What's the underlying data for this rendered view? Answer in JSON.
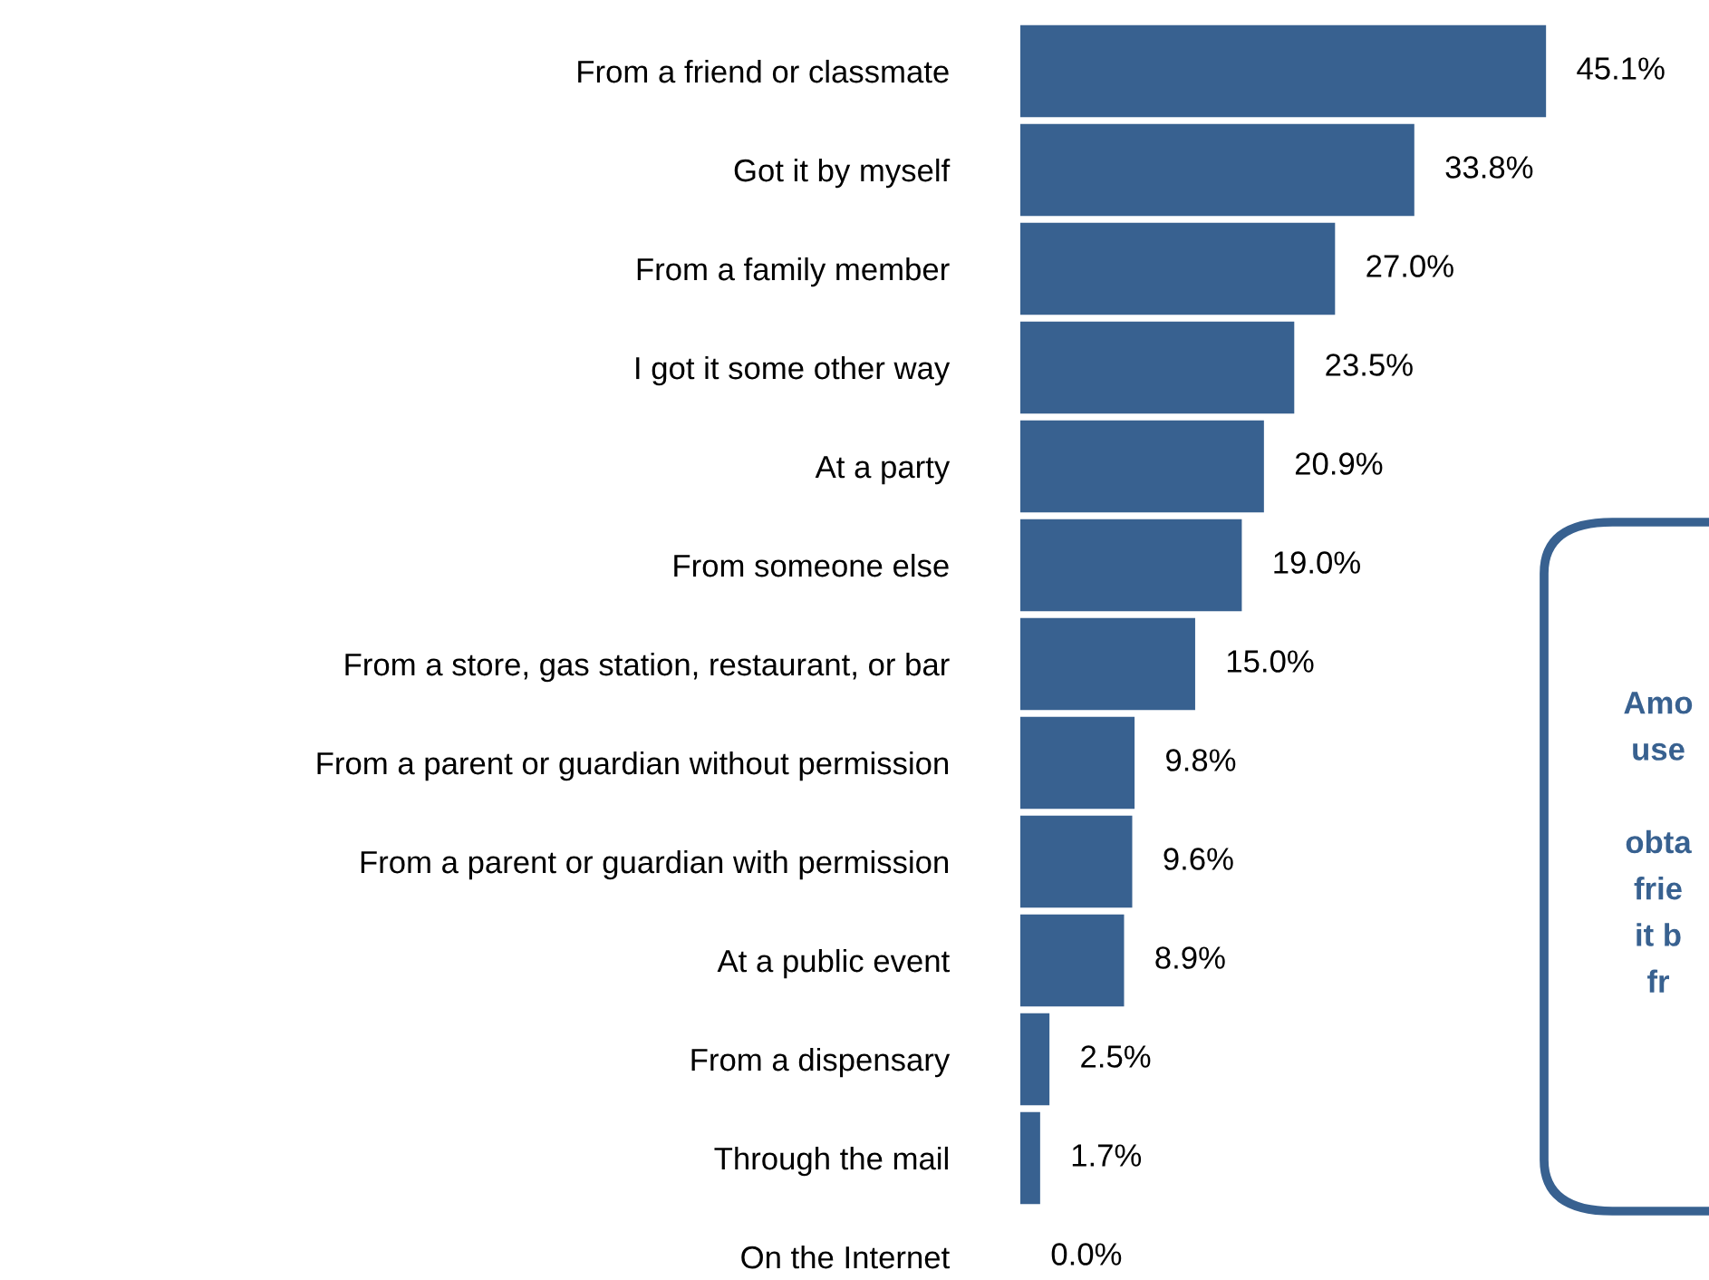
{
  "chart_data": {
    "type": "bar",
    "orientation": "horizontal",
    "categories": [
      "From a friend or classmate",
      "Got it by myself",
      "From a family member",
      "I got it some other way",
      "At a party",
      "From someone else",
      "From a store, gas station, restaurant, or bar",
      "From a parent or guardian without permission",
      "From a parent or guardian with permission",
      "At a public event",
      "From a dispensary",
      "Through the mail",
      "On the Internet"
    ],
    "values": [
      45.1,
      33.8,
      27.0,
      23.5,
      20.9,
      19.0,
      15.0,
      9.8,
      9.6,
      8.9,
      2.5,
      1.7,
      0.0
    ],
    "value_labels": [
      "45.1%",
      "33.8%",
      "27.0%",
      "23.5%",
      "20.9%",
      "19.0%",
      "15.0%",
      "9.8%",
      "9.6%",
      "8.9%",
      "2.5%",
      "1.7%",
      "0.0%"
    ],
    "color": "#386190",
    "grid": false,
    "legend": false,
    "annotations": [
      "Amo\nuse\n\nobta\nfrie\nit b\nfr"
    ]
  }
}
